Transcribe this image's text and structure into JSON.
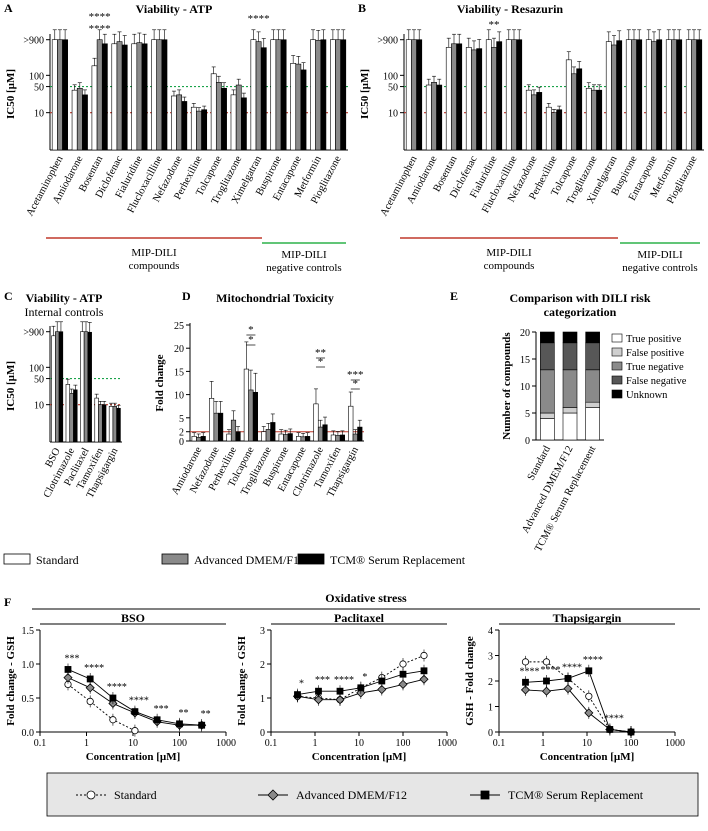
{
  "chart_data": [
    {
      "panel": "A",
      "type": "bar",
      "title": "Viability - ATP",
      "ylabel": "IC50 [µM]",
      "yscale": "log",
      "ylim": [
        1,
        1000
      ],
      "yticks": [
        {
          "v": 10,
          "label": "10"
        },
        {
          "v": 50,
          "label": "50"
        },
        {
          "v": 100,
          "label": "100"
        },
        {
          "v": 900,
          "label": ">900"
        }
      ],
      "reference_lines": [
        {
          "v": 50,
          "color": "#1aa34a"
        },
        {
          "v": 10,
          "color": "#c0392b"
        }
      ],
      "categories": [
        "Acetaminophen",
        "Amiodarone",
        "Bosentan",
        "Diclofenac",
        "Fialuridine",
        "Flucloxacilline",
        "Nefazodone",
        "Perhexiline",
        "Tolcapone",
        "Troglitazone",
        "Ximelgatran",
        "Buspirone",
        "Entacapone",
        "Metformin",
        "Pioglitazone"
      ],
      "series": [
        {
          "name": "Standard",
          "values": [
            900,
            40,
            180,
            700,
            700,
            900,
            28,
            14,
            110,
            30,
            900,
            900,
            210,
            900,
            900
          ]
        },
        {
          "name": "Advanced DMEM/F12",
          "values": [
            900,
            45,
            900,
            800,
            750,
            900,
            30,
            11,
            65,
            55,
            800,
            900,
            200,
            870,
            900
          ]
        },
        {
          "name": "TCM® Serum Replacement",
          "values": [
            900,
            30,
            700,
            650,
            700,
            900,
            20,
            12,
            45,
            25,
            550,
            900,
            140,
            900,
            900
          ]
        }
      ],
      "significance": [
        {
          "label": "****",
          "cat": 2
        },
        {
          "label": "****",
          "cat": 2
        },
        {
          "label": "****",
          "cat": 10
        }
      ],
      "groups": [
        {
          "label": "MIP-DILI",
          "label2": "compounds",
          "color": "#c0392b"
        },
        {
          "label": "MIP-DILI",
          "label2": "negative controls",
          "color": "#2db24a"
        }
      ]
    },
    {
      "panel": "B",
      "type": "bar",
      "title": "Viability - Resazurin",
      "ylabel": "IC50 [µM]",
      "yscale": "log",
      "ylim": [
        1,
        1000
      ],
      "yticks": [
        {
          "v": 10,
          "label": "10"
        },
        {
          "v": 50,
          "label": "50"
        },
        {
          "v": 100,
          "label": "100"
        },
        {
          "v": 900,
          "label": ">900"
        }
      ],
      "reference_lines": [
        {
          "v": 50,
          "color": "#1aa34a"
        },
        {
          "v": 10,
          "color": "#c0392b"
        }
      ],
      "categories": [
        "Acetaminophen",
        "Amiodarone",
        "Bosentan",
        "Diclofenac",
        "Fialuridine",
        "Flucloxacilline",
        "Nefazodone",
        "Perhexiline",
        "Tolcapone",
        "Troglitazone",
        "Ximelgatran",
        "Buspirone",
        "Entacapone",
        "Metformin",
        "Pioglitazone"
      ],
      "series": [
        {
          "name": "Standard",
          "values": [
            900,
            55,
            560,
            560,
            900,
            900,
            40,
            14,
            260,
            45,
            800,
            900,
            900,
            900,
            900
          ]
        },
        {
          "name": "Advanced DMEM/F12",
          "values": [
            900,
            65,
            700,
            480,
            560,
            900,
            30,
            10,
            110,
            40,
            650,
            900,
            800,
            900,
            900
          ]
        },
        {
          "name": "TCM® Serum Replacement",
          "values": [
            900,
            55,
            700,
            520,
            800,
            900,
            35,
            12,
            150,
            40,
            850,
            900,
            900,
            900,
            900
          ]
        }
      ],
      "significance": [
        {
          "label": "**",
          "cat": 4
        }
      ],
      "groups": [
        {
          "label": "MIP-DILI",
          "label2": "compounds",
          "color": "#c0392b"
        },
        {
          "label": "MIP-DILI",
          "label2": "negative controls",
          "color": "#2db24a"
        }
      ]
    },
    {
      "panel": "C",
      "type": "bar",
      "title": "Viability - ATP",
      "subtitle": "Internal controls",
      "ylabel": "IC50 [µM]",
      "yscale": "log",
      "ylim": [
        1,
        1000
      ],
      "yticks": [
        {
          "v": 10,
          "label": "10"
        },
        {
          "v": 50,
          "label": "50"
        },
        {
          "v": 100,
          "label": "100"
        },
        {
          "v": 900,
          "label": ">900"
        }
      ],
      "reference_lines": [
        {
          "v": 50,
          "color": "#1aa34a"
        },
        {
          "v": 10,
          "color": "#c0392b"
        }
      ],
      "categories": [
        "BSO",
        "Clotrimazole",
        "Paclitaxel",
        "Tamoxifen",
        "Thapsigargin"
      ],
      "series": [
        {
          "name": "Standard",
          "values": [
            700,
            35,
            900,
            15,
            9
          ]
        },
        {
          "name": "Advanced DMEM/F12",
          "values": [
            900,
            20,
            900,
            10,
            9
          ]
        },
        {
          "name": "TCM® Serum Replacement",
          "values": [
            900,
            25,
            870,
            10,
            8
          ]
        }
      ]
    },
    {
      "panel": "D",
      "type": "bar",
      "title": "Mitochondrial Toxicity",
      "ylabel": "Fold change",
      "ylim": [
        0,
        25
      ],
      "yticks": [
        {
          "v": 0,
          "label": "0"
        },
        {
          "v": 2,
          "label": "2"
        },
        {
          "v": 5,
          "label": "5"
        },
        {
          "v": 10,
          "label": "10"
        },
        {
          "v": 15,
          "label": "15"
        },
        {
          "v": 20,
          "label": "20"
        },
        {
          "v": 25,
          "label": "25"
        }
      ],
      "reference_lines": [
        {
          "v": 2,
          "color": "#c0392b"
        }
      ],
      "categories": [
        "Amiodarone",
        "Nefazodone",
        "Perhexiline",
        "Tolcapone",
        "Troglitazone",
        "Buspirone",
        "Entacapone",
        "Clotrimazole",
        "Tamoxifen",
        "Thapsigargin"
      ],
      "series": [
        {
          "name": "Standard",
          "values": [
            1,
            9.2,
            1.5,
            15.5,
            2,
            1.5,
            1,
            8,
            1.3,
            7.5
          ]
        },
        {
          "name": "Advanced DMEM/F12",
          "values": [
            0.8,
            6,
            4.5,
            11,
            2.5,
            1.4,
            0.9,
            3,
            1.2,
            1.5
          ]
        },
        {
          "name": "TCM® Serum Replacement",
          "values": [
            1,
            6,
            2,
            10.5,
            4,
            1.6,
            1,
            3.5,
            1.3,
            3
          ]
        }
      ],
      "significance": [
        {
          "label": "*",
          "cat": 3
        },
        {
          "label": "*",
          "cat": 3
        },
        {
          "label": "**",
          "cat": 7
        },
        {
          "label": "*",
          "cat": 7
        },
        {
          "label": "***",
          "cat": 9
        },
        {
          "label": "*",
          "cat": 9
        }
      ]
    },
    {
      "panel": "E",
      "type": "bar",
      "stacked": true,
      "title": "Comparison with DILI risk",
      "title2": "categorization",
      "ylabel": "Number of compounds",
      "ylim": [
        0,
        20
      ],
      "yticks": [
        {
          "v": 0,
          "label": "0"
        },
        {
          "v": 5,
          "label": "5"
        },
        {
          "v": 10,
          "label": "10"
        },
        {
          "v": 15,
          "label": "15"
        },
        {
          "v": 20,
          "label": "20"
        }
      ],
      "categories": [
        "Standard",
        "Advanced DMEM/F12",
        "TCM® Serum Replacement"
      ],
      "series": [
        {
          "name": "True positive",
          "color": "#ffffff",
          "values": [
            4,
            5,
            6
          ]
        },
        {
          "name": "False positive",
          "color": "#cfcfcf",
          "values": [
            1,
            1,
            1
          ]
        },
        {
          "name": "True negative",
          "color": "#8a8a8a",
          "values": [
            8,
            7,
            6
          ]
        },
        {
          "name": "False negative",
          "color": "#575757",
          "values": [
            5,
            5,
            5
          ]
        },
        {
          "name": "Unknown",
          "color": "#000000",
          "values": [
            2,
            2,
            2
          ]
        }
      ]
    },
    {
      "panel": "F",
      "type": "line",
      "header": "Oxidative stress",
      "subplots": [
        {
          "title": "BSO",
          "xlabel": "Concentration [µM]",
          "ylabel": "Fold change - GSH",
          "xscale": "log",
          "xlim": [
            0.1,
            1000
          ],
          "ylim": [
            0,
            1.5
          ],
          "xticks": [
            "0.1",
            "1",
            "10",
            "100",
            "1000"
          ],
          "yticks": [
            "0.0",
            "0.5",
            "1.0",
            "1.5"
          ],
          "x": [
            0.4,
            1.2,
            3.7,
            11,
            33,
            100,
            300
          ],
          "series": [
            {
              "name": "Standard",
              "values": [
                0.7,
                0.45,
                0.18,
                0.02,
                null,
                null,
                null
              ]
            },
            {
              "name": "Advanced DMEM/F12",
              "values": [
                0.8,
                0.65,
                0.42,
                0.28,
                0.15,
                0.1,
                0.1
              ]
            },
            {
              "name": "TCM® Serum Replacement",
              "values": [
                0.92,
                0.78,
                0.5,
                0.3,
                0.18,
                0.12,
                0.1
              ]
            }
          ],
          "annotations": [
            "***",
            "****",
            "****",
            "****",
            "***",
            "**",
            "**"
          ]
        },
        {
          "title": "Paclitaxel",
          "xlabel": "Concentration [µM]",
          "ylabel": "Fold change - GSH",
          "xscale": "log",
          "xlim": [
            0.1,
            1000
          ],
          "ylim": [
            0,
            3
          ],
          "xticks": [
            "0.1",
            "1",
            "10",
            "100",
            "1000"
          ],
          "yticks": [
            "0",
            "1",
            "2",
            "3"
          ],
          "x": [
            0.4,
            1.2,
            3.7,
            11,
            33,
            100,
            300
          ],
          "series": [
            {
              "name": "Standard",
              "values": [
                1.05,
                1.0,
                0.95,
                1.3,
                1.6,
                2.0,
                2.25
              ]
            },
            {
              "name": "Advanced DMEM/F12",
              "values": [
                1.05,
                0.95,
                0.95,
                1.15,
                1.25,
                1.4,
                1.55
              ]
            },
            {
              "name": "TCM® Serum Replacement",
              "values": [
                1.1,
                1.2,
                1.2,
                1.3,
                1.5,
                1.7,
                1.8
              ]
            }
          ],
          "annotations": [
            "*",
            "***",
            "****",
            "*"
          ]
        },
        {
          "title": "Thapsigargin",
          "xlabel": "Concentration [µM]",
          "ylabel": "GSH - Fold change",
          "xscale": "log",
          "xlim": [
            0.1,
            1000
          ],
          "ylim": [
            0,
            4
          ],
          "xticks": [
            "0.1",
            "1",
            "10",
            "100",
            "1000"
          ],
          "yticks": [
            "0",
            "1",
            "2",
            "3",
            "4"
          ],
          "x": [
            0.4,
            1.2,
            3.7,
            11,
            33,
            100
          ],
          "series": [
            {
              "name": "Standard",
              "values": [
                2.75,
                2.75,
                2.1,
                1.4,
                0.1,
                0
              ]
            },
            {
              "name": "Advanced DMEM/F12",
              "values": [
                1.65,
                1.6,
                1.7,
                0.75,
                0.1,
                0
              ]
            },
            {
              "name": "TCM® Serum Replacement",
              "values": [
                1.95,
                2.0,
                2.1,
                2.4,
                0.1,
                0
              ]
            }
          ],
          "annotations": [
            "****",
            "****",
            "****",
            "****",
            "****"
          ]
        }
      ]
    }
  ],
  "legend_bars": [
    {
      "name": "Standard",
      "color": "#ffffff"
    },
    {
      "name": "Advanced DMEM/F12",
      "color": "#8a8a8a"
    },
    {
      "name": "TCM® Serum Replacement",
      "color": "#000000"
    }
  ],
  "legend_lines": [
    {
      "name": "Standard",
      "marker": "circle"
    },
    {
      "name": "Advanced DMEM/F12",
      "marker": "diamond"
    },
    {
      "name": "TCM® Serum Replacement",
      "marker": "square"
    }
  ]
}
